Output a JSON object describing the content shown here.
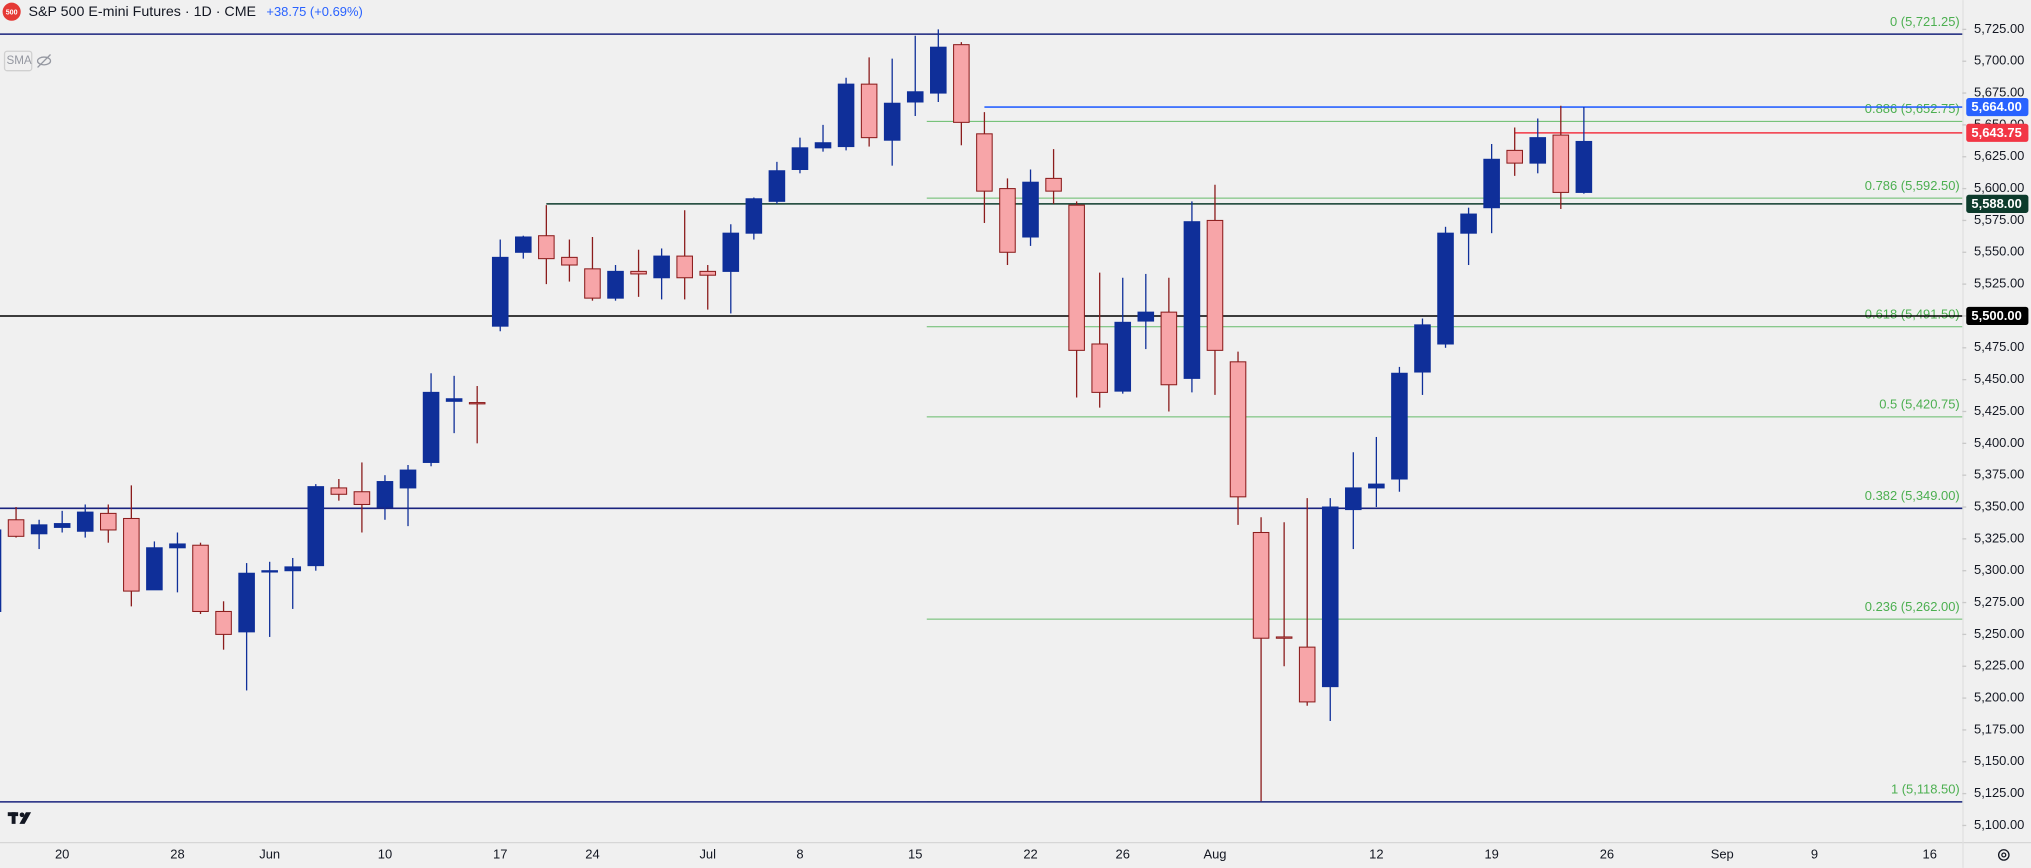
{
  "chart_data": {
    "type": "candlestick",
    "title": "S&P 500 E-mini Futures · 1D · CME",
    "change": "+38.75 (+0.69%)",
    "symbol_badge": "500",
    "indicator": "SMA",
    "up_color": "#0f2f99",
    "down_color": "#f7a5a8",
    "down_border": "#8b1c1c",
    "grid": false,
    "categories": [
      null,
      null,
      null,
      "20",
      null,
      null,
      null,
      null,
      "28",
      null,
      null,
      null,
      "Jun",
      null,
      null,
      null,
      null,
      "10",
      null,
      null,
      null,
      null,
      "17",
      null,
      null,
      null,
      "24",
      null,
      null,
      null,
      null,
      "Jul",
      null,
      null,
      null,
      "8",
      null,
      null,
      null,
      null,
      "15",
      null,
      null,
      null,
      null,
      "22",
      null,
      null,
      null,
      "26",
      null,
      null,
      null,
      "Aug",
      null,
      null,
      null,
      null,
      null,
      null,
      "12",
      null,
      null,
      null,
      null,
      "19",
      null,
      null,
      null,
      null,
      "26",
      null,
      null,
      null,
      null,
      "Sep",
      null,
      null,
      null,
      "9",
      null,
      null,
      null,
      null,
      "16"
    ],
    "series": {
      "open": [
        5268,
        5340,
        5329,
        5334,
        5331,
        5345,
        5341,
        5285,
        5318,
        5320,
        5268,
        5252,
        5299,
        5300,
        5304,
        5365,
        5362,
        5350,
        5365,
        5385,
        5433,
        5432,
        5492,
        5550,
        5563,
        5546,
        5537,
        5514,
        5535,
        5530,
        5547,
        5535,
        5535,
        5565,
        5590,
        5615,
        5632,
        5633,
        5682,
        5638,
        5668,
        5675,
        5713,
        5643,
        5600,
        5562,
        5608,
        5587,
        5478,
        5441,
        5496,
        5503,
        5451,
        5575,
        5464,
        5330,
        5248,
        5240,
        5209,
        5348,
        5365,
        5372,
        5456,
        5478,
        5565,
        5585,
        5630,
        5620,
        5642,
        5597,
        null,
        null,
        null,
        null,
        null,
        null,
        null,
        null,
        null,
        null,
        null,
        null,
        null,
        null,
        null
      ],
      "high": [
        5335,
        5350,
        5340,
        5347,
        5352,
        5352,
        5367,
        5323,
        5330,
        5322,
        5276,
        5306,
        5307,
        5310,
        5368,
        5372,
        5385,
        5375,
        5383,
        5455,
        5453,
        5445,
        5560,
        5563,
        5587,
        5560,
        5562,
        5540,
        5552,
        5553,
        5583,
        5540,
        5572,
        5593,
        5621,
        5640,
        5650,
        5687,
        5703,
        5702,
        5720,
        5725,
        5715,
        5660,
        5608,
        5615,
        5631,
        5590,
        5534,
        5530,
        5533,
        5530,
        5590,
        5603,
        5472,
        5342,
        5338,
        5357,
        5357,
        5393,
        5405,
        5460,
        5498,
        5570,
        5585,
        5635,
        5648,
        5655,
        5665,
        5664,
        null,
        null,
        null,
        null,
        null,
        null,
        null,
        null,
        null,
        null,
        null,
        null,
        null,
        null,
        null
      ],
      "low": [
        5265,
        5326,
        5317,
        5330,
        5326,
        5322,
        5272,
        5285,
        5283,
        5266,
        5238,
        5206,
        5248,
        5270,
        5300,
        5355,
        5330,
        5340,
        5335,
        5382,
        5408,
        5400,
        5488,
        5545,
        5525,
        5527,
        5512,
        5512,
        5515,
        5513,
        5513,
        5505,
        5502,
        5560,
        5588,
        5612,
        5629,
        5630,
        5633,
        5618,
        5657,
        5668,
        5634,
        5573,
        5540,
        5555,
        5588,
        5436,
        5428,
        5439,
        5474,
        5425,
        5440,
        5438,
        5336,
        5119,
        5225,
        5194,
        5182,
        5317,
        5350,
        5362,
        5438,
        5475,
        5540,
        5565,
        5610,
        5612,
        5584,
        5596,
        null,
        null,
        null,
        null,
        null,
        null,
        null,
        null,
        null,
        null,
        null,
        null,
        null,
        null,
        null
      ],
      "close": [
        5332,
        5327,
        5336,
        5337,
        5346,
        5332,
        5284,
        5318,
        5321,
        5268,
        5250,
        5298,
        5300,
        5303,
        5366,
        5360,
        5352,
        5370,
        5379,
        5440,
        5435,
        5431,
        5546,
        5562,
        5545,
        5540,
        5514,
        5535,
        5533,
        5547,
        5530,
        5532,
        5565,
        5592,
        5614,
        5632,
        5636,
        5682,
        5640,
        5667,
        5676,
        5711,
        5652,
        5598,
        5550,
        5605,
        5598,
        5473,
        5440,
        5495,
        5503,
        5446,
        5574,
        5473,
        5358,
        5247,
        5247,
        5197,
        5350,
        5365,
        5368,
        5455,
        5493,
        5565,
        5580,
        5623,
        5620,
        5640,
        5597,
        5637,
        null,
        null,
        null,
        null,
        null,
        null,
        null,
        null,
        null,
        null,
        null,
        null,
        null,
        null,
        null
      ]
    },
    "ylim": [
      5087,
      5748
    ],
    "yticks": [
      {
        "value": 5100,
        "label": "5,100.00"
      },
      {
        "value": 5125,
        "label": "5,125.00"
      },
      {
        "value": 5150,
        "label": "5,150.00"
      },
      {
        "value": 5175,
        "label": "5,175.00"
      },
      {
        "value": 5200,
        "label": "5,200.00"
      },
      {
        "value": 5225,
        "label": "5,225.00"
      },
      {
        "value": 5250,
        "label": "5,250.00"
      },
      {
        "value": 5275,
        "label": "5,275.00"
      },
      {
        "value": 5300,
        "label": "5,300.00"
      },
      {
        "value": 5325,
        "label": "5,325.00"
      },
      {
        "value": 5350,
        "label": "5,350.00"
      },
      {
        "value": 5375,
        "label": "5,375.00"
      },
      {
        "value": 5400,
        "label": "5,400.00"
      },
      {
        "value": 5425,
        "label": "5,425.00"
      },
      {
        "value": 5450,
        "label": "5,450.00"
      },
      {
        "value": 5475,
        "label": "5,475.00"
      },
      {
        "value": 5500,
        "label": "5,500.00"
      },
      {
        "value": 5525,
        "label": "5,525.00"
      },
      {
        "value": 5550,
        "label": "5,550.00"
      },
      {
        "value": 5575,
        "label": "5,575.00"
      },
      {
        "value": 5600,
        "label": "5,600.00"
      },
      {
        "value": 5625,
        "label": "5,625.00"
      },
      {
        "value": 5650,
        "label": "5,650.00"
      },
      {
        "value": 5675,
        "label": "5,675.00"
      },
      {
        "value": 5700,
        "label": "5,700.00"
      },
      {
        "value": 5725,
        "label": "5,725.00"
      }
    ],
    "horizontal_lines": [
      {
        "value": 5721.25,
        "color": "#1a237e"
      },
      {
        "value": 5588,
        "label": "5,588.00",
        "color": "#0d3b2c"
      },
      {
        "value": 5500,
        "label": "5,500.00",
        "color": "#000000"
      },
      {
        "value": 5349,
        "color": "#1a237e"
      },
      {
        "value": 5118.5,
        "color": "#1a237e"
      },
      {
        "value": 5664,
        "label": "5,664.00",
        "color": "#2962ff"
      },
      {
        "value": 5643.75,
        "label": "5,643.75",
        "color": "#f23645"
      }
    ],
    "fib_color": "#66bb6a",
    "fib_levels": [
      {
        "value": 5721.25,
        "label": "0 (5,721.25)"
      },
      {
        "value": 5652.75,
        "label": "0.886 (5,652.75)"
      },
      {
        "value": 5592.5,
        "label": "0.786 (5,592.50)"
      },
      {
        "value": 5491.5,
        "label": "0.618 (5,491.50)"
      },
      {
        "value": 5420.75,
        "label": "0.5 (5,420.75)"
      },
      {
        "value": 5349,
        "label": "0.382 (5,349.00)"
      },
      {
        "value": 5262,
        "label": "0.236 (5,262.00)"
      },
      {
        "value": 5118.5,
        "label": "1 (5,118.50)"
      }
    ]
  }
}
